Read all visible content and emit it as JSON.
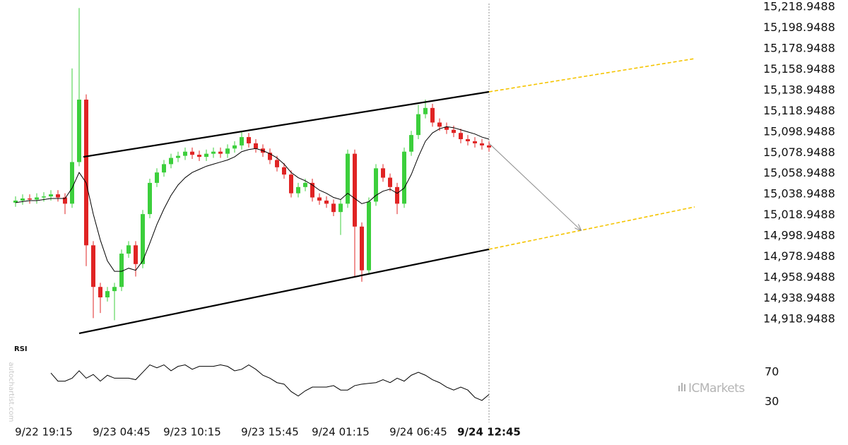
{
  "chart_data": {
    "type": "candlestick",
    "x_labels": [
      {
        "value": 4,
        "label": "9/22 19:15"
      },
      {
        "value": 15,
        "label": "9/23 04:45"
      },
      {
        "value": 25,
        "label": "9/23 10:15"
      },
      {
        "value": 36,
        "label": "9/23 15:45"
      },
      {
        "value": 46,
        "label": "9/24 01:15"
      },
      {
        "value": 57,
        "label": "9/24 06:45"
      },
      {
        "value": 67,
        "label": "9/24 12:45"
      }
    ],
    "ylim": [
      14899.93,
      15225.74
    ],
    "yticks": [
      {
        "value": 15218.9488,
        "label": "15,218.9488"
      },
      {
        "value": 15198.9488,
        "label": "15,198.9488"
      },
      {
        "value": 15178.9488,
        "label": "15,178.9488"
      },
      {
        "value": 15158.9488,
        "label": "15,158.9488"
      },
      {
        "value": 15138.9488,
        "label": "15,138.9488"
      },
      {
        "value": 15118.9488,
        "label": "15,118.9488"
      },
      {
        "value": 15098.9488,
        "label": "15,098.9488"
      },
      {
        "value": 15078.9488,
        "label": "15,078.9488"
      },
      {
        "value": 15058.9488,
        "label": "15,058.9488"
      },
      {
        "value": 15038.9488,
        "label": "15,038.9488"
      },
      {
        "value": 15018.9488,
        "label": "15,018.9488"
      },
      {
        "value": 14998.9488,
        "label": "14,998.9488"
      },
      {
        "value": 14978.9488,
        "label": "14,978.9488"
      },
      {
        "value": 14958.9488,
        "label": "14,958.9488"
      },
      {
        "value": 14938.9488,
        "label": "14,938.9488"
      },
      {
        "value": 14918.9488,
        "label": "14,918.9488"
      }
    ],
    "up_color": "#3ccf3c",
    "down_color": "#e02424",
    "open": [
      15031,
      15033,
      15035,
      15034,
      15036,
      15037,
      15039,
      15036,
      15030,
      15070,
      15130,
      14990,
      14950,
      14940,
      14946,
      14950,
      14982,
      14990,
      14972,
      15020,
      15050,
      15060,
      15068,
      15074,
      15076,
      15080,
      15077,
      15075,
      15078,
      15080,
      15078,
      15083,
      15086,
      15094,
      15088,
      15083,
      15079,
      15072,
      15065,
      15058,
      15040,
      15046,
      15050,
      15036,
      15033,
      15030,
      15022,
      15030,
      15078,
      15008,
      14966,
      15032,
      15064,
      15055,
      15046,
      15030,
      15080,
      15096,
      15116,
      15122,
      15108,
      15104,
      15101,
      15098,
      15092,
      15090,
      15088,
      15086
    ],
    "high": [
      15037,
      15039,
      15039,
      15040,
      15041,
      15043,
      15043,
      15040,
      15160,
      15218,
      15135,
      14994,
      14954,
      14950,
      14954,
      14986,
      14994,
      14994,
      15024,
      15054,
      15064,
      15072,
      15078,
      15080,
      15084,
      15084,
      15081,
      15082,
      15084,
      15084,
      15087,
      15090,
      15100,
      15098,
      15092,
      15087,
      15083,
      15076,
      15069,
      15062,
      15050,
      15054,
      15054,
      15040,
      15037,
      15034,
      15034,
      15082,
      15082,
      15012,
      15036,
      15068,
      15068,
      15059,
      15050,
      15084,
      15100,
      15125,
      15130,
      15126,
      15112,
      15108,
      15105,
      15102,
      15096,
      15094,
      15092,
      15090
    ],
    "low": [
      15027,
      15029,
      15030,
      15030,
      15032,
      15033,
      15032,
      15020,
      15026,
      15066,
      14970,
      14920,
      14925,
      14936,
      14918,
      14946,
      14978,
      14960,
      14968,
      15016,
      15046,
      15056,
      15064,
      15070,
      15072,
      15073,
      15071,
      15071,
      15074,
      15074,
      15074,
      15079,
      15082,
      15084,
      15079,
      15075,
      15068,
      15061,
      15054,
      15036,
      15036,
      15042,
      15032,
      15029,
      15026,
      15018,
      15000,
      15026,
      14960,
      14955,
      14962,
      15028,
      15051,
      15042,
      15020,
      15026,
      15076,
      15092,
      15112,
      15104,
      15100,
      15097,
      15094,
      15088,
      15086,
      15084,
      15082,
      15080
    ],
    "close": [
      15033,
      15035,
      15034,
      15036,
      15037,
      15039,
      15036,
      15030,
      15070,
      15130,
      14990,
      14950,
      14940,
      14946,
      14950,
      14982,
      14990,
      14972,
      15020,
      15050,
      15060,
      15068,
      15074,
      15076,
      15080,
      15077,
      15075,
      15078,
      15080,
      15078,
      15083,
      15086,
      15094,
      15088,
      15083,
      15079,
      15072,
      15065,
      15058,
      15040,
      15046,
      15050,
      15036,
      15033,
      15030,
      15022,
      15030,
      15078,
      15008,
      14966,
      15032,
      15064,
      15055,
      15046,
      15030,
      15080,
      15096,
      15116,
      15122,
      15108,
      15104,
      15101,
      15098,
      15092,
      15090,
      15088,
      15086,
      15084
    ],
    "moving_average": {
      "color": "#000000",
      "values": [
        15031,
        15032,
        15033,
        15033,
        15034,
        15035,
        15035,
        15035,
        15045,
        15060,
        15050,
        15020,
        14995,
        14975,
        14965,
        14965,
        14968,
        14966,
        14975,
        14992,
        15010,
        15025,
        15038,
        15048,
        15055,
        15060,
        15063,
        15066,
        15068,
        15070,
        15072,
        15075,
        15080,
        15082,
        15083,
        15081,
        15078,
        15074,
        15068,
        15060,
        15055,
        15052,
        15048,
        15043,
        15040,
        15036,
        15034,
        15040,
        15035,
        15030,
        15032,
        15038,
        15042,
        15044,
        15040,
        15045,
        15058,
        15075,
        15090,
        15098,
        15102,
        15104,
        15103,
        15101,
        15099,
        15097,
        15094,
        15092
      ]
    },
    "trend_lines": [
      {
        "color": "#000000",
        "points": [
          {
            "x": 9.6,
            "value": 15075.0
          },
          {
            "x": 67,
            "value": 15137.5
          }
        ]
      },
      {
        "color": "#000000",
        "points": [
          {
            "x": 9,
            "value": 14905.4
          },
          {
            "x": 67,
            "value": 14986.2
          }
        ]
      }
    ],
    "projections": [
      {
        "color": "#f5c400",
        "points": [
          {
            "x": 67,
            "value": 15137.5
          },
          {
            "x": 96.1,
            "value": 15169.4
          }
        ]
      },
      {
        "color": "#f5c400",
        "points": [
          {
            "x": 67,
            "value": 14986.2
          },
          {
            "x": 96.1,
            "value": 15026.9
          }
        ]
      }
    ],
    "forecast_arrow": {
      "color": "#8a8a8a",
      "points": [
        {
          "x": 67,
          "value": 15088
        },
        {
          "x": 80,
          "value": 15004.5
        }
      ]
    },
    "rsi": {
      "type": "line",
      "title": "RSI",
      "color": "#000000",
      "ylim": [
        10,
        91
      ],
      "yticks": [
        30,
        70
      ],
      "values": [
        null,
        null,
        null,
        null,
        null,
        69,
        58,
        58,
        62,
        72,
        62,
        67,
        58,
        66,
        62,
        62,
        62,
        60,
        70,
        80,
        76,
        80,
        72,
        78,
        80,
        74,
        78,
        78,
        78,
        80,
        78,
        72,
        74,
        80,
        74,
        66,
        62,
        56,
        54,
        44,
        38,
        45,
        50,
        50,
        50,
        52,
        46,
        46,
        52,
        54,
        55,
        56,
        60,
        56,
        62,
        58,
        66,
        70,
        66,
        60,
        56,
        50,
        46,
        50,
        46,
        36,
        32,
        40
      ]
    },
    "source": "autochartist.com",
    "brand": "ICMarkets"
  }
}
